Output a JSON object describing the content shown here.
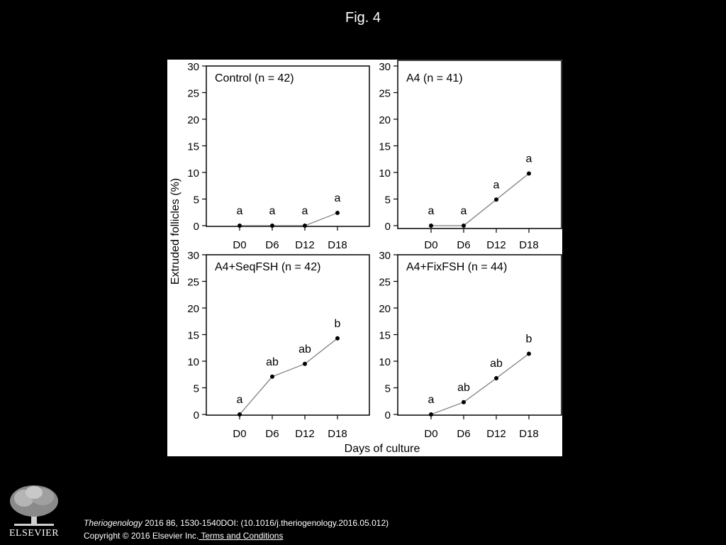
{
  "figure_title": "Fig. 4",
  "chart_data": [
    {
      "type": "line",
      "title": "Control (n = 42)",
      "categories": [
        "D0",
        "D6",
        "D12",
        "D18"
      ],
      "values": [
        0,
        0,
        0,
        2.4
      ],
      "point_labels": [
        "a",
        "a",
        "a",
        "a"
      ],
      "yticks": [
        0,
        5,
        10,
        15,
        20,
        25,
        30
      ],
      "ylim": [
        0,
        30
      ]
    },
    {
      "type": "line",
      "title": "A4 (n = 41)",
      "categories": [
        "D0",
        "D6",
        "D12",
        "D18"
      ],
      "values": [
        0,
        0,
        4.9,
        9.8
      ],
      "point_labels": [
        "a",
        "a",
        "a",
        "a"
      ],
      "yticks": [
        0,
        5,
        10,
        15,
        20,
        25,
        30
      ],
      "ylim": [
        0,
        30
      ]
    },
    {
      "type": "line",
      "title": "A4+SeqFSH (n = 42)",
      "categories": [
        "D0",
        "D6",
        "D12",
        "D18"
      ],
      "values": [
        0,
        7.1,
        9.5,
        14.3
      ],
      "point_labels": [
        "a",
        "ab",
        "ab",
        "b"
      ],
      "yticks": [
        0,
        5,
        10,
        15,
        20,
        25,
        30
      ],
      "ylim": [
        0,
        30
      ]
    },
    {
      "type": "line",
      "title": "A4+FixFSH (n = 44)",
      "categories": [
        "D0",
        "D6",
        "D12",
        "D18"
      ],
      "values": [
        0,
        2.3,
        6.8,
        11.4
      ],
      "point_labels": [
        "a",
        "ab",
        "ab",
        "b"
      ],
      "yticks": [
        0,
        5,
        10,
        15,
        20,
        25,
        30
      ],
      "ylim": [
        0,
        30
      ]
    }
  ],
  "axes": {
    "ylabel": "Extruded follicles (%)",
    "xlabel": "Days of culture"
  },
  "footer": {
    "logo_text": "ELSEVIER",
    "citation_journal": "Theriogenology",
    "citation_rest": " 2016 86, 1530-1540DOI: (10.1016/j.theriogenology.2016.05.012)",
    "copyright": "Copyright © 2016 Elsevier Inc.",
    "terms_link": " Terms and Conditions"
  },
  "colors": {
    "background": "#000000",
    "panel": "#ffffff",
    "ink": "#000000",
    "line": "#777777"
  }
}
